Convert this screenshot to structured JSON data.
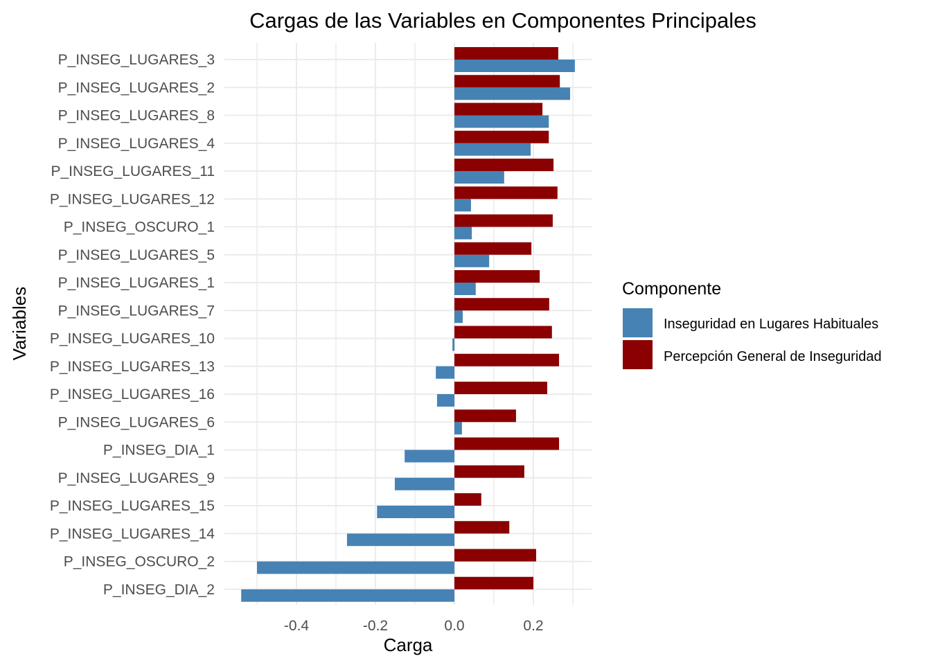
{
  "chart_data": {
    "type": "bar",
    "orientation": "horizontal",
    "title": "Cargas de las Variables en Componentes Principales",
    "xlabel": "Carga",
    "ylabel": "Variables",
    "xlim": [
      -0.58,
      0.35
    ],
    "xticks": [
      -0.4,
      -0.2,
      0.0,
      0.2
    ],
    "xtick_labels": [
      "-0.4",
      "-0.2",
      "0.0",
      "0.2"
    ],
    "x_minor_gridlines": [
      -0.5,
      -0.3,
      -0.1,
      0.1,
      0.3
    ],
    "grid": true,
    "legend": {
      "title": "Componente",
      "placement": "right",
      "entries": [
        "Inseguridad en Lugares Habituales",
        "Percepción General de Inseguridad"
      ]
    },
    "categories": [
      "P_INSEG_LUGARES_3",
      "P_INSEG_LUGARES_2",
      "P_INSEG_LUGARES_8",
      "P_INSEG_LUGARES_4",
      "P_INSEG_LUGARES_11",
      "P_INSEG_LUGARES_12",
      "P_INSEG_OSCURO_1",
      "P_INSEG_LUGARES_5",
      "P_INSEG_LUGARES_1",
      "P_INSEG_LUGARES_7",
      "P_INSEG_LUGARES_10",
      "P_INSEG_LUGARES_13",
      "P_INSEG_LUGARES_16",
      "P_INSEG_LUGARES_6",
      "P_INSEG_DIA_1",
      "P_INSEG_LUGARES_9",
      "P_INSEG_LUGARES_15",
      "P_INSEG_LUGARES_14",
      "P_INSEG_OSCURO_2",
      "P_INSEG_DIA_2"
    ],
    "series": [
      {
        "name": "Inseguridad en Lugares Habituales",
        "color": "#4682B4",
        "values": [
          0.305,
          0.293,
          0.239,
          0.193,
          0.126,
          0.042,
          0.044,
          0.088,
          0.054,
          0.021,
          -0.005,
          -0.047,
          -0.044,
          0.019,
          -0.126,
          -0.151,
          -0.196,
          -0.272,
          -0.5,
          -0.54
        ]
      },
      {
        "name": "Percepción General de Inseguridad",
        "color": "#8B0000",
        "values": [
          0.263,
          0.267,
          0.223,
          0.239,
          0.251,
          0.261,
          0.249,
          0.195,
          0.216,
          0.24,
          0.247,
          0.265,
          0.235,
          0.156,
          0.265,
          0.177,
          0.068,
          0.139,
          0.207,
          0.2
        ]
      }
    ]
  }
}
